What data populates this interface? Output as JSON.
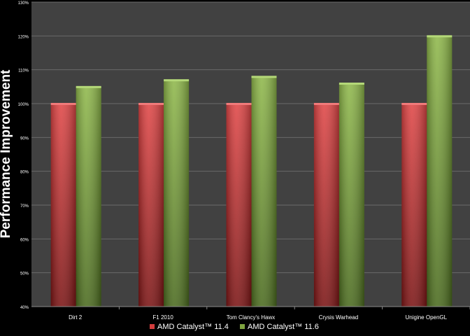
{
  "chart_data": {
    "type": "bar",
    "title": "",
    "xlabel": "",
    "ylabel": "Performance Improvement",
    "categories": [
      "Dirt 2",
      "F1 2010",
      "Tom Clancy's Hawx",
      "Crysis Warhead",
      "Unigine OpenGL"
    ],
    "series": [
      {
        "name": "AMD Catalyst™ 11.4",
        "values": [
          100,
          100,
          100,
          100,
          100
        ]
      },
      {
        "name": "AMD Catalyst™ 11.6",
        "values": [
          105,
          107,
          108,
          106,
          120
        ]
      }
    ],
    "ylim": [
      40,
      130
    ],
    "yticks": [
      "40%",
      "50%",
      "60%",
      "70%",
      "80%",
      "90%",
      "100%",
      "110%",
      "120%",
      "130%"
    ],
    "grid": true,
    "legend_position": "bottom",
    "colors": {
      "background": "#000000",
      "plot_area": "#414141",
      "gridline": "#6a6a6a",
      "series_11_4": "#d23c3c",
      "series_11_6": "#7ea33f",
      "text": "#ffffff"
    }
  }
}
